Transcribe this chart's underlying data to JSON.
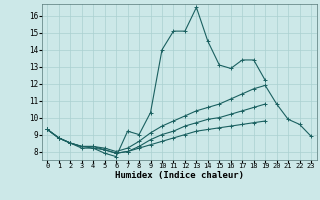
{
  "title": "",
  "xlabel": "Humidex (Indice chaleur)",
  "ylabel": "",
  "background_color": "#cce8e8",
  "grid_color": "#aad0d0",
  "line_color": "#1a6060",
  "xlim": [
    -0.5,
    23.5
  ],
  "ylim": [
    7.5,
    16.7
  ],
  "xticks": [
    0,
    1,
    2,
    3,
    4,
    5,
    6,
    7,
    8,
    9,
    10,
    11,
    12,
    13,
    14,
    15,
    16,
    17,
    18,
    19,
    20,
    21,
    22,
    23
  ],
  "yticks": [
    8,
    9,
    10,
    11,
    12,
    13,
    14,
    15,
    16
  ],
  "line1_y": [
    9.3,
    8.8,
    8.5,
    8.2,
    8.2,
    7.9,
    7.7,
    9.2,
    9.0,
    10.3,
    14.0,
    15.1,
    15.1,
    16.5,
    14.5,
    13.1,
    12.9,
    13.4,
    13.4,
    12.2,
    null,
    null,
    null,
    null
  ],
  "line2_y": [
    9.3,
    8.8,
    8.5,
    8.3,
    8.3,
    8.2,
    8.0,
    8.2,
    8.6,
    9.1,
    9.5,
    9.8,
    10.1,
    10.4,
    10.6,
    10.8,
    11.1,
    11.4,
    11.7,
    11.9,
    10.8,
    9.9,
    9.6,
    8.9
  ],
  "line3_y": [
    9.3,
    8.8,
    8.5,
    8.3,
    8.3,
    8.1,
    7.9,
    8.0,
    8.3,
    8.7,
    9.0,
    9.2,
    9.5,
    9.7,
    9.9,
    10.0,
    10.2,
    10.4,
    10.6,
    10.8,
    null,
    null,
    null,
    null
  ],
  "line4_y": [
    9.3,
    8.8,
    8.5,
    8.3,
    8.2,
    8.1,
    7.9,
    8.0,
    8.2,
    8.4,
    8.6,
    8.8,
    9.0,
    9.2,
    9.3,
    9.4,
    9.5,
    9.6,
    9.7,
    9.8,
    null,
    null,
    null,
    null
  ],
  "marker": "+",
  "markersize": 3,
  "linewidth": 0.8
}
